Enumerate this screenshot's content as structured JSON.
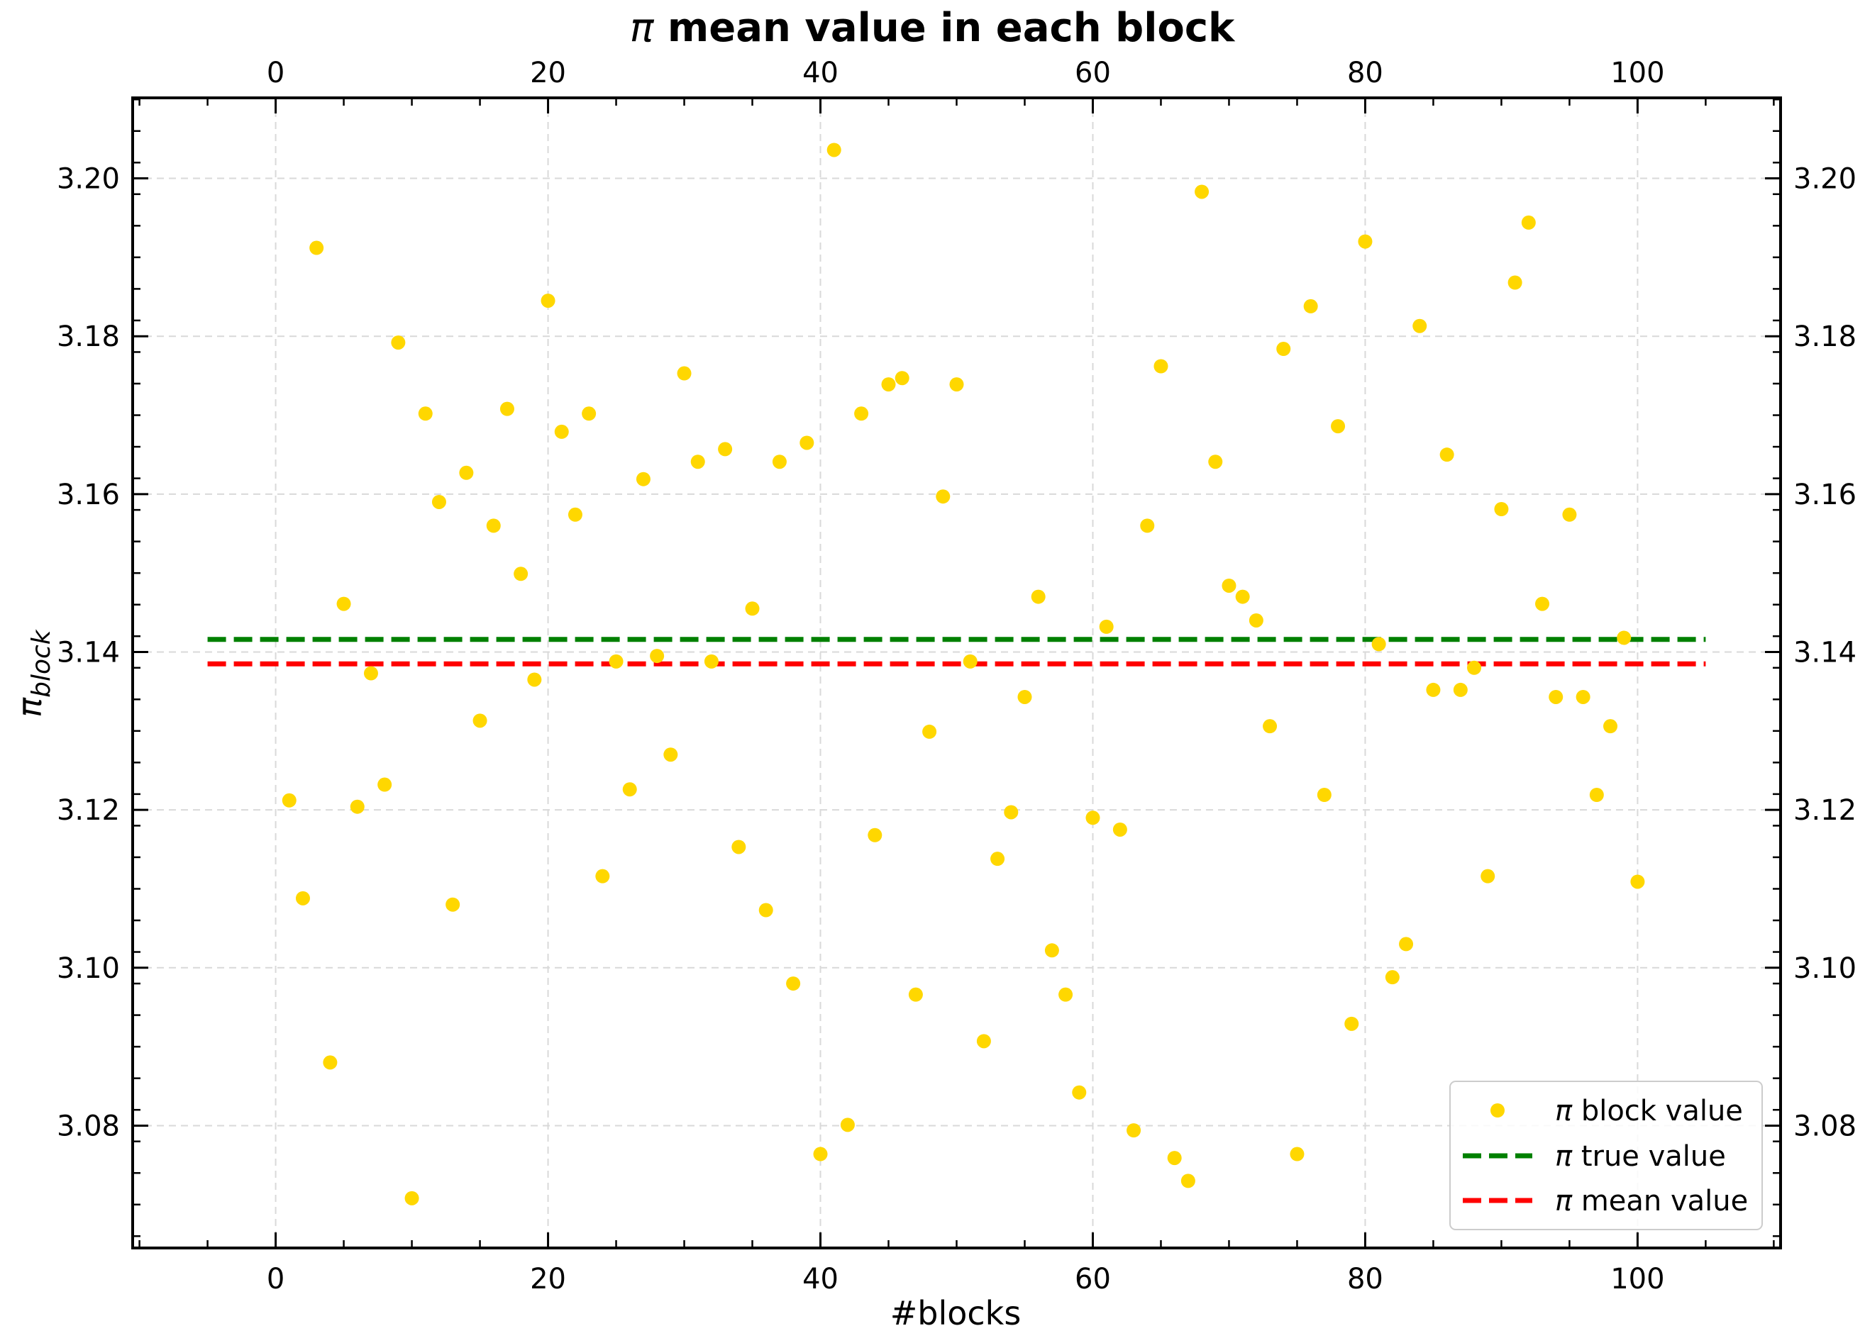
{
  "chart_data": {
    "type": "scatter",
    "title": "π mean value in each block",
    "title_symbol": "π",
    "title_rest": "mean value in each block",
    "xlabel": "#blocks",
    "ylabel_symbol": "π",
    "ylabel_sub": "block",
    "xlim": [
      -10.5,
      110.5
    ],
    "ylim": [
      3.0645,
      3.2102
    ],
    "xticks": [
      0,
      20,
      40,
      60,
      80,
      100
    ],
    "yticks": [
      3.08,
      3.1,
      3.12,
      3.14,
      3.16,
      3.18,
      3.2
    ],
    "ytick_labels": [
      "3.08",
      "3.10",
      "3.12",
      "3.14",
      "3.16",
      "3.18",
      "3.20"
    ],
    "grid": true,
    "top_axis_mirrored": true,
    "right_axis_mirrored": true,
    "legend_position": "lower-right",
    "colors": {
      "points": "#FFD700",
      "true_line": "#008000",
      "mean_line": "#FF0000"
    },
    "series": [
      {
        "name": "block value",
        "name_symbol": "π",
        "kind": "scatter",
        "x": [
          1,
          2,
          3,
          4,
          5,
          6,
          7,
          8,
          9,
          10,
          11,
          12,
          13,
          14,
          15,
          16,
          17,
          18,
          19,
          20,
          21,
          22,
          23,
          24,
          25,
          26,
          27,
          28,
          29,
          30,
          31,
          32,
          33,
          34,
          35,
          36,
          37,
          38,
          39,
          40,
          41,
          42,
          43,
          44,
          45,
          46,
          47,
          48,
          49,
          50,
          51,
          52,
          53,
          54,
          55,
          56,
          57,
          58,
          59,
          60,
          61,
          62,
          63,
          64,
          65,
          66,
          67,
          68,
          69,
          70,
          71,
          72,
          73,
          74,
          75,
          76,
          77,
          78,
          79,
          80,
          81,
          82,
          83,
          84,
          85,
          86,
          87,
          88,
          89,
          90,
          91,
          92,
          93,
          94,
          95,
          96,
          97,
          98,
          99,
          100
        ],
        "y": [
          3.1212,
          3.1088,
          3.1912,
          3.088,
          3.1461,
          3.1204,
          3.1373,
          3.1232,
          3.1792,
          3.0708,
          3.1702,
          3.159,
          3.108,
          3.1627,
          3.1313,
          3.156,
          3.1708,
          3.1499,
          3.1365,
          3.1845,
          3.1679,
          3.1574,
          3.1702,
          3.1116,
          3.1388,
          3.1226,
          3.1619,
          3.1395,
          3.127,
          3.1753,
          3.1641,
          3.1388,
          3.1657,
          3.1153,
          3.1455,
          3.1073,
          3.1641,
          3.098,
          3.1665,
          3.0764,
          3.2036,
          3.0801,
          3.1702,
          3.1168,
          3.1739,
          3.1747,
          3.0966,
          3.1299,
          3.1597,
          3.1739,
          3.1388,
          3.0907,
          3.1138,
          3.1197,
          3.1343,
          3.147,
          3.1022,
          3.0966,
          3.0842,
          3.119,
          3.1432,
          3.1175,
          3.0794,
          3.156,
          3.1762,
          3.0759,
          3.073,
          3.1983,
          3.1641,
          3.1484,
          3.147,
          3.144,
          3.1306,
          3.1784,
          3.0764,
          3.1838,
          3.1219,
          3.1686,
          3.0929,
          3.192,
          3.141,
          3.0988,
          3.103,
          3.1813,
          3.1352,
          3.165,
          3.1352,
          3.138,
          3.1116,
          3.1581,
          3.1868,
          3.1944,
          3.1461,
          3.1343,
          3.1574,
          3.1343,
          3.1219,
          3.1306,
          3.1418,
          3.1109
        ]
      },
      {
        "name": "true value",
        "name_symbol": "π",
        "kind": "hline",
        "y": 3.14159,
        "x_range": [
          -5,
          105
        ]
      },
      {
        "name": "mean value",
        "name_symbol": "π",
        "kind": "hline",
        "y": 3.1385,
        "x_range": [
          -5,
          105
        ]
      }
    ]
  }
}
